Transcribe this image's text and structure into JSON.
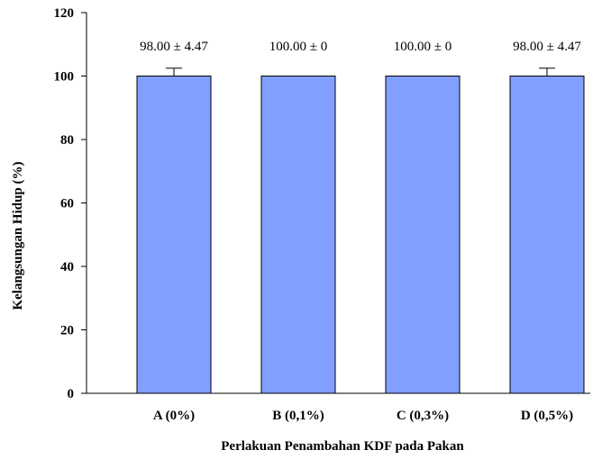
{
  "chart_data": {
    "type": "bar",
    "categories": [
      "A (0%)",
      "B (0,1%)",
      "C (0,3%)",
      "D (0,5%)"
    ],
    "values": [
      98.0,
      100.0,
      100.0,
      98.0
    ],
    "errors": [
      4.47,
      0,
      0,
      4.47
    ],
    "data_labels": [
      "98.00 ± 4.47",
      "100.00 ± 0",
      "100.00 ± 0",
      "98.00 ± 4.47"
    ],
    "xlabel": "Perlakuan Penambahan KDF pada Pakan",
    "ylabel": "Kelangsungan Hidup (%)",
    "ylim": [
      0,
      120
    ],
    "yticks": [
      0,
      20,
      40,
      60,
      80,
      100,
      120
    ],
    "grid": false,
    "bar_color": "#809FFF"
  }
}
